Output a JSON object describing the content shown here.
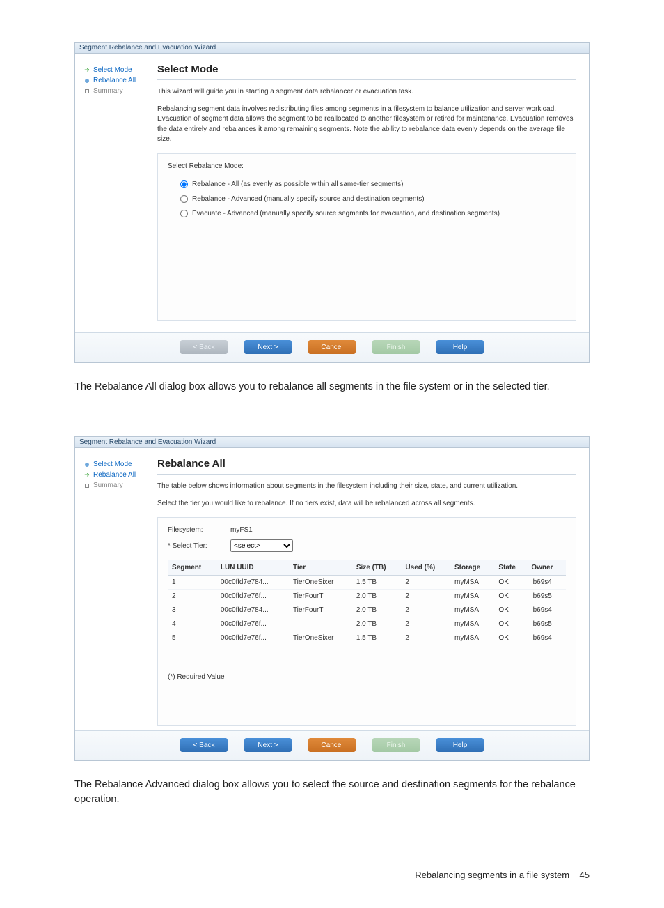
{
  "wizard1": {
    "window_title": "Segment Rebalance and Evacuation Wizard",
    "sidebar": {
      "items": [
        {
          "label": "Select Mode",
          "state": "current"
        },
        {
          "label": "Rebalance All",
          "state": "next"
        },
        {
          "label": "Summary",
          "state": "future"
        }
      ]
    },
    "heading": "Select Mode",
    "intro": "This wizard will guide you in starting a segment data rebalancer or evacuation task.",
    "desc": "Rebalancing segment data involves redistributing files among segments in a filesystem to balance utilization and server workload. Evacuation of segment data allows the segment to be reallocated to another filesystem or retired for maintenance. Evacuation removes the data entirely and rebalances it among remaining segments. Note the ability to rebalance data evenly depends on the average file size.",
    "subhead": "Select Rebalance Mode:",
    "options": [
      {
        "label": "Rebalance - All (as evenly as possible within all same-tier segments)",
        "selected": true
      },
      {
        "label": "Rebalance - Advanced (manually specify source and destination segments)",
        "selected": false
      },
      {
        "label": "Evacuate - Advanced (manually specify source segments for evacuation, and destination segments)",
        "selected": false
      }
    ],
    "buttons": {
      "back": "< Back",
      "next": "Next >",
      "cancel": "Cancel",
      "finish": "Finish",
      "help": "Help"
    }
  },
  "para1": "The Rebalance All dialog box allows you to rebalance all segments in the file system or in the selected tier.",
  "wizard2": {
    "window_title": "Segment Rebalance and Evacuation Wizard",
    "sidebar": {
      "items": [
        {
          "label": "Select Mode",
          "state": "done"
        },
        {
          "label": "Rebalance All",
          "state": "current"
        },
        {
          "label": "Summary",
          "state": "future"
        }
      ]
    },
    "heading": "Rebalance All",
    "intro": "The table below shows information about segments in the filesystem including their size, state, and current utilization.",
    "desc": "Select the tier you would like to rebalance. If no tiers exist, data will be rebalanced across all segments.",
    "filesystem_label": "Filesystem:",
    "filesystem_value": "myFS1",
    "select_tier_label": "* Select Tier:",
    "select_tier_placeholder": "<select>",
    "columns": [
      "Segment",
      "LUN UUID",
      "Tier",
      "Size (TB)",
      "Used (%)",
      "Storage",
      "State",
      "Owner"
    ],
    "rows": [
      [
        "1",
        "00c0ffd7e784...",
        "TierOneSixer",
        "1.5 TB",
        "2",
        "myMSA",
        "OK",
        "ib69s4"
      ],
      [
        "2",
        "00c0ffd7e76f...",
        "TierFourT",
        "2.0 TB",
        "2",
        "myMSA",
        "OK",
        "ib69s5"
      ],
      [
        "3",
        "00c0ffd7e784...",
        "TierFourT",
        "2.0 TB",
        "2",
        "myMSA",
        "OK",
        "ib69s4"
      ],
      [
        "4",
        "00c0ffd7e76f...",
        "",
        "2.0 TB",
        "2",
        "myMSA",
        "OK",
        "ib69s5"
      ],
      [
        "5",
        "00c0ffd7e76f...",
        "TierOneSixer",
        "1.5 TB",
        "2",
        "myMSA",
        "OK",
        "ib69s4"
      ]
    ],
    "required_note": "(*) Required Value",
    "buttons": {
      "back": "< Back",
      "next": "Next >",
      "cancel": "Cancel",
      "finish": "Finish",
      "help": "Help"
    }
  },
  "para2": "The Rebalance Advanced dialog box allows you to select the source and destination segments for the rebalance operation.",
  "footer": {
    "label": "Rebalancing segments in a file system",
    "page": "45"
  },
  "colors": {
    "accent_blue": "#2f6fb5",
    "accent_orange": "#c96f22",
    "border": "#b8c6d4"
  }
}
